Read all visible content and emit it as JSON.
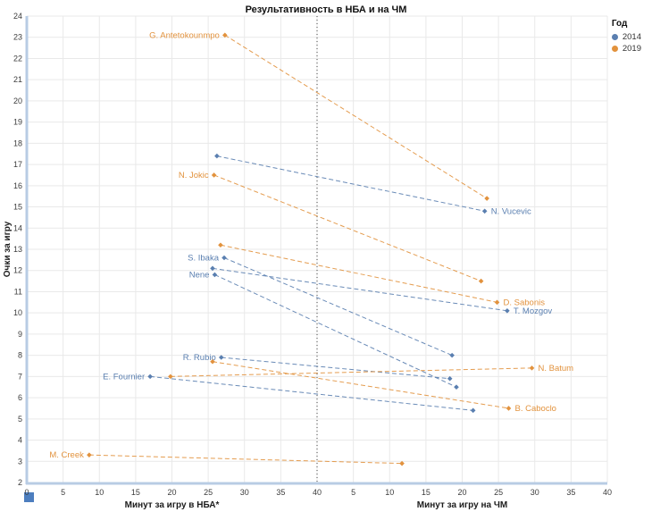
{
  "legend": {
    "title": "Год",
    "entries": [
      {
        "label": "2014",
        "color": "#5a7fb0"
      },
      {
        "label": "2019",
        "color": "#e2923d"
      }
    ]
  },
  "colors": {
    "y2014": "#5a7fb0",
    "y2019": "#e2923d",
    "grid": "#e9e9e9",
    "axis": "#b8cce4",
    "divider": "#444444",
    "tick": "#3c3c3c",
    "title": "#111111",
    "corner": "#4d7ebf",
    "background": "#ffffff"
  },
  "chart_data": {
    "type": "scatter",
    "title": "Результативность в НБА и на ЧМ",
    "ylabel": "Очки за игру",
    "xlabel_left": "Минут за игру в НБА*",
    "xlabel_right": "Минут за игру на ЧМ",
    "ylim": [
      2,
      24
    ],
    "xlim": [
      0,
      40
    ],
    "y_ticks": [
      2,
      3,
      4,
      5,
      6,
      7,
      8,
      9,
      10,
      11,
      12,
      13,
      14,
      15,
      16,
      17,
      18,
      19,
      20,
      21,
      22,
      23,
      24
    ],
    "x_ticks_left": [
      0,
      5,
      10,
      15,
      20,
      25,
      30,
      35,
      40
    ],
    "x_ticks_right": [
      5,
      10,
      15,
      20,
      25,
      30,
      35,
      40
    ],
    "grid": true,
    "divider_note": "dotted vertical line splits NBA half (left) and World Cup half (right)",
    "legend_position": "top-right",
    "line_style": "dashed, colored by year",
    "series": [
      {
        "name": "G. Antetokounmpo",
        "year": "2019",
        "nba": {
          "min": 27.3,
          "pts": 23.1
        },
        "wc": {
          "min": 23.4,
          "pts": 15.4
        },
        "label_side": "nba"
      },
      {
        "name": "N. Vucevic",
        "year": "2014",
        "nba": {
          "min": 26.2,
          "pts": 17.4
        },
        "wc": {
          "min": 23.1,
          "pts": 14.8
        },
        "label_side": "wc"
      },
      {
        "name": "N. Jokic",
        "year": "2019",
        "nba": {
          "min": 25.8,
          "pts": 16.5
        },
        "wc": {
          "min": 22.6,
          "pts": 11.5
        },
        "label_side": "nba"
      },
      {
        "name": "D. Sabonis",
        "year": "2019",
        "nba": {
          "min": 26.7,
          "pts": 13.2
        },
        "wc": {
          "min": 24.8,
          "pts": 10.5
        },
        "label_side": "wc"
      },
      {
        "name": "S. Ibaka",
        "year": "2014",
        "nba": {
          "min": 27.2,
          "pts": 12.6
        },
        "wc": {
          "min": 18.6,
          "pts": 8.0
        },
        "label_side": "nba"
      },
      {
        "name": "T. Mozgov",
        "year": "2014",
        "nba": {
          "min": 25.6,
          "pts": 12.1
        },
        "wc": {
          "min": 26.2,
          "pts": 10.1
        },
        "label_side": "wc"
      },
      {
        "name": "Nene",
        "year": "2014",
        "nba": {
          "min": 25.9,
          "pts": 11.8
        },
        "wc": {
          "min": 19.2,
          "pts": 6.5
        },
        "label_side": "nba"
      },
      {
        "name": "R. Rubio",
        "year": "2014",
        "nba": {
          "min": 26.8,
          "pts": 7.9
        },
        "wc": {
          "min": 18.3,
          "pts": 6.9
        },
        "label_side": "nba"
      },
      {
        "name": "N. Batum",
        "year": "2019",
        "nba": {
          "min": 19.8,
          "pts": 7.0
        },
        "wc": {
          "min": 29.6,
          "pts": 7.4
        },
        "label_side": "wc"
      },
      {
        "name": "E. Fournier",
        "year": "2014",
        "nba": {
          "min": 17.0,
          "pts": 7.0
        },
        "wc": {
          "min": 21.5,
          "pts": 5.4
        },
        "label_side": "nba"
      },
      {
        "name": "B. Caboclo",
        "year": "2019",
        "nba": {
          "min": 25.6,
          "pts": 7.7
        },
        "wc": {
          "min": 26.4,
          "pts": 5.5
        },
        "label_side": "wc"
      },
      {
        "name": "M. Creek",
        "year": "2019",
        "nba": {
          "min": 8.6,
          "pts": 3.3
        },
        "wc": {
          "min": 11.7,
          "pts": 2.9
        },
        "label_side": "nba"
      }
    ]
  }
}
